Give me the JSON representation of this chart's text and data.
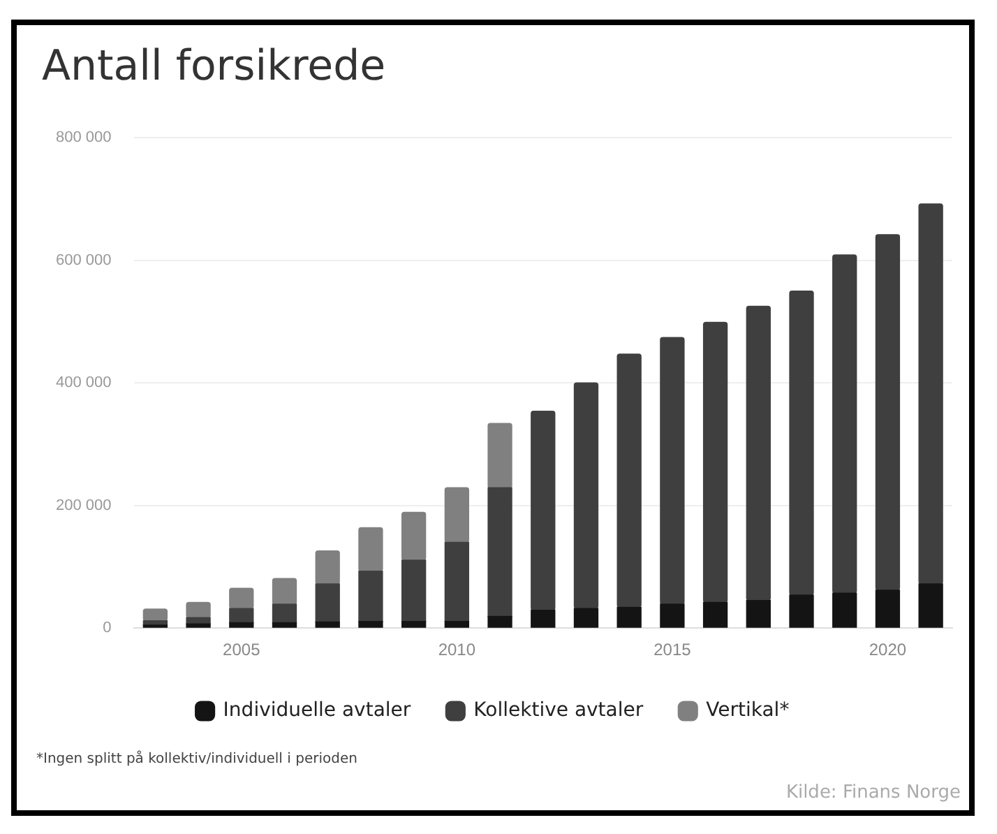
{
  "chart_data": {
    "type": "bar",
    "title": "Antall forsikrede",
    "stacked": true,
    "x": [
      2003,
      2004,
      2005,
      2006,
      2007,
      2008,
      2009,
      2010,
      2011,
      2012,
      2013,
      2014,
      2015,
      2016,
      2017,
      2018,
      2019,
      2020,
      2021
    ],
    "series": [
      {
        "name": "Individuelle avtaler",
        "color": "#141414",
        "values": [
          5000,
          7000,
          9000,
          9000,
          10000,
          11000,
          11000,
          11000,
          19000,
          29000,
          32000,
          34000,
          39000,
          42000,
          45000,
          54000,
          57000,
          62000,
          72000
        ]
      },
      {
        "name": "Kollektive avtaler",
        "color": "#3f3f3f",
        "values": [
          7000,
          10000,
          23000,
          30000,
          62000,
          82000,
          100000,
          129000,
          210000,
          325000,
          368000,
          413000,
          435000,
          457000,
          480000,
          496000,
          552000,
          580000,
          620000
        ]
      },
      {
        "name": "Vertikal*",
        "color": "#808080",
        "values": [
          19000,
          25000,
          33000,
          42000,
          54000,
          71000,
          78000,
          89000,
          105000,
          null,
          null,
          null,
          null,
          null,
          null,
          null,
          null,
          null,
          null
        ]
      }
    ],
    "xlim": [
      2002.5,
      2021.5
    ],
    "xticks": [
      2005,
      2010,
      2015,
      2020
    ],
    "ylim": [
      0,
      800000
    ],
    "yticks": [
      {
        "value": 0,
        "label": "0"
      },
      {
        "value": 200000,
        "label": "200 000"
      },
      {
        "value": 400000,
        "label": "400 000"
      },
      {
        "value": 600000,
        "label": "600 000"
      },
      {
        "value": 800000,
        "label": "800 000"
      }
    ],
    "grid": "y",
    "legend": "bottom",
    "annotations": [
      "*Ingen splitt på kollektiv/individuell i perioden",
      "Kilde: Finans Norge"
    ]
  }
}
